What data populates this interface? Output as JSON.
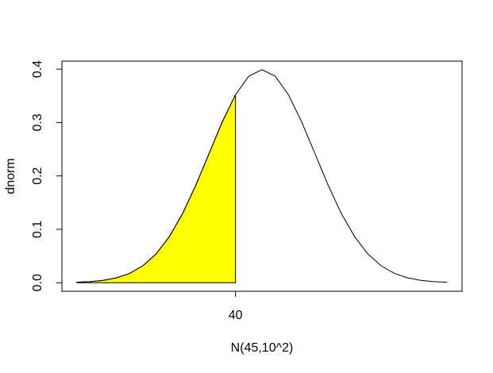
{
  "chart_data": {
    "type": "line",
    "x_label": "N(45,10^2)",
    "y_label": "dnorm",
    "x": [
      10,
      12.5,
      15,
      17.5,
      20,
      22.5,
      25,
      27.5,
      30,
      32.5,
      35,
      37.5,
      40,
      42.5,
      45,
      47.5,
      50,
      52.5,
      55,
      57.5,
      60,
      62.5,
      65,
      67.5,
      70,
      72.5,
      75,
      77.5,
      80
    ],
    "series": [
      {
        "color": "#000000",
        "values": [
          0.0009,
          0.002,
          0.0044,
          0.0091,
          0.0175,
          0.0317,
          0.054,
          0.0863,
          0.1295,
          0.1826,
          0.242,
          0.3011,
          0.3521,
          0.3867,
          0.3989,
          0.3867,
          0.3521,
          0.3011,
          0.242,
          0.1826,
          0.1295,
          0.0863,
          0.054,
          0.0317,
          0.0175,
          0.0091,
          0.0044,
          0.002,
          0.0009
        ]
      }
    ],
    "shaded": {
      "color": "#ffff00",
      "x": [
        10,
        12.5,
        15,
        17.5,
        20,
        22.5,
        25,
        27.5,
        30,
        32.5,
        35,
        37.5,
        40
      ],
      "values": [
        0.0009,
        0.002,
        0.0044,
        0.0091,
        0.0175,
        0.0317,
        0.054,
        0.0863,
        0.1295,
        0.1826,
        0.242,
        0.3011,
        0.3521
      ]
    },
    "xlim": [
      7.2,
      82.8
    ],
    "ylim": [
      -0.016,
      0.415
    ],
    "xticks": [
      40
    ],
    "yticks": [
      {
        "value": 0,
        "label": "0.0"
      },
      0.1,
      0.2,
      0.3,
      0.4
    ]
  }
}
